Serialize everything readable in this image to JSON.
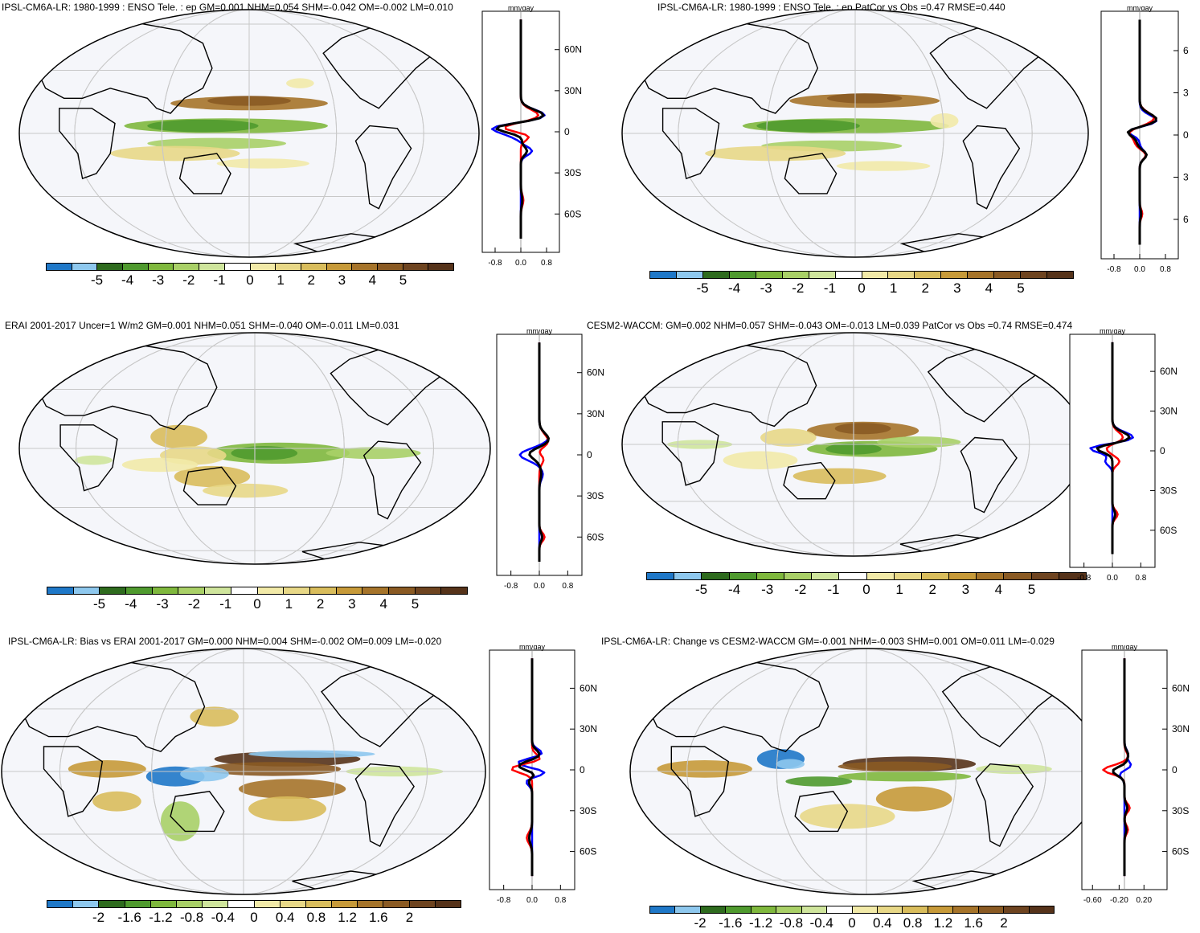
{
  "panels": [
    {
      "title": "IPSL-CM6A-LR: 1980-1999 : ENSO Tele. : ep GM=0.001 NHM=0.054 SHM=-0.042 OM=-0.002 LM=0.010",
      "cbar_labels": [
        "-5",
        "-4",
        "-3",
        "-2",
        "-1",
        "0",
        "1",
        "2",
        "3",
        "4",
        "5"
      ],
      "profile_unit": "mm/day",
      "lat_ticks": [
        "60N",
        "30N",
        "0",
        "30S",
        "60S"
      ],
      "x_ticks": [
        "-0.8",
        "0.0",
        "0.8"
      ]
    },
    {
      "title": "IPSL-CM6A-LR: 1980-1999 : ENSO Tele. : ep PatCor vs Obs =0.47 RMSE=0.440",
      "cbar_labels": [
        "-5",
        "-4",
        "-3",
        "-2",
        "-1",
        "0",
        "1",
        "2",
        "3",
        "4",
        "5"
      ],
      "profile_unit": "mm/day",
      "lat_ticks": [
        "6",
        "3",
        "0",
        "3",
        "6"
      ],
      "x_ticks": [
        "-0.8",
        "0.0",
        "0.8"
      ]
    },
    {
      "title": "ERAI 2001-2017 Uncer=1 W/m2 GM=0.001 NHM=0.051 SHM=-0.040 OM=-0.011 LM=0.031",
      "cbar_labels": [
        "-5",
        "-4",
        "-3",
        "-2",
        "-1",
        "0",
        "1",
        "2",
        "3",
        "4",
        "5"
      ],
      "profile_unit": "mm/day",
      "lat_ticks": [
        "60N",
        "30N",
        "0",
        "30S",
        "60S"
      ],
      "x_ticks": [
        "-0.8",
        "0.0",
        "0.8"
      ]
    },
    {
      "title": "CESM2-WACCM: GM=0.002 NHM=0.057 SHM=-0.043 OM=-0.013 LM=0.039 PatCor vs Obs =0.74 RMSE=0.474",
      "cbar_labels": [
        "-5",
        "-4",
        "-3",
        "-2",
        "-1",
        "0",
        "1",
        "2",
        "3",
        "4",
        "5"
      ],
      "profile_unit": "mm/day",
      "lat_ticks": [
        "60N",
        "30N",
        "0",
        "30S",
        "60S"
      ],
      "x_ticks": [
        "-0.8",
        "0.0",
        "0.8"
      ]
    },
    {
      "title": "IPSL-CM6A-LR: Bias vs ERAI 2001-2017 GM=0.000 NHM=0.004 SHM=-0.002 OM=0.009 LM=-0.020",
      "cbar_labels": [
        "-2",
        "-1.6",
        "-1.2",
        "-0.8",
        "-0.4",
        "0",
        "0.4",
        "0.8",
        "1.2",
        "1.6",
        "2"
      ],
      "profile_unit": "mm/day",
      "lat_ticks": [
        "60N",
        "30N",
        "0",
        "30S",
        "60S"
      ],
      "x_ticks": [
        "-0.8",
        "0.0",
        "0.8"
      ]
    },
    {
      "title": "IPSL-CM6A-LR: Change vs CESM2-WACCM GM=-0.001 NHM=-0.003 SHM=0.001 OM=0.011 LM=-0.029",
      "cbar_labels": [
        "-2",
        "-1.6",
        "-1.2",
        "-0.8",
        "-0.4",
        "0",
        "0.4",
        "0.8",
        "1.2",
        "1.6",
        "2"
      ],
      "profile_unit": "mm/day",
      "lat_ticks": [
        "60N",
        "30N",
        "0",
        "30S",
        "60S"
      ],
      "x_ticks": [
        "-0.60",
        "-0.20",
        "0.20"
      ]
    }
  ],
  "colors": {
    "palette": [
      "#1f78c8",
      "#8ec8ee",
      "#2e6b1e",
      "#4f9a2e",
      "#7fb83d",
      "#a9d067",
      "#cfe59c",
      "#ffffff",
      "#f2eaa8",
      "#e8d887",
      "#d9bd5c",
      "#c79a39",
      "#a6742a",
      "#8a5a23",
      "#6e4420",
      "#56331a"
    ],
    "model_line": "#0000ff",
    "obs_line": "#ff0000",
    "mean_line": "#000000",
    "map_bg": "#f5f6fa",
    "graticule": "#c8c8c8"
  }
}
